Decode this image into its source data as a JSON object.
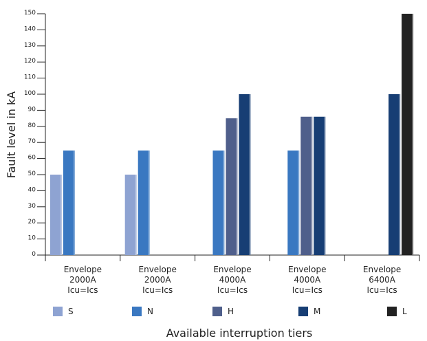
{
  "chart_data": {
    "type": "bar",
    "title": "",
    "xlabel": "Available interruption tiers",
    "ylabel": "Fault level in kA",
    "ylim": [
      0,
      150
    ],
    "yticks": [
      0,
      10,
      20,
      30,
      40,
      50,
      60,
      70,
      80,
      90,
      100,
      110,
      120,
      130,
      140,
      150
    ],
    "grid": false,
    "legend_position": "bottom",
    "categories": [
      [
        "Envelope",
        "2000A",
        "Icu=Ics"
      ],
      [
        "Envelope",
        "2000A",
        "Icu=Ics"
      ],
      [
        "Envelope",
        "4000A",
        "Icu=Ics"
      ],
      [
        "Envelope",
        "4000A",
        "Icu=Ics"
      ],
      [
        "Envelope",
        "6400A",
        "Icu=Ics"
      ]
    ],
    "series": [
      {
        "name": "S",
        "color": "#8ea3d2",
        "values": [
          50,
          50,
          null,
          null,
          null
        ]
      },
      {
        "name": "N",
        "color": "#3a78c1",
        "values": [
          65,
          65,
          65,
          65,
          null
        ]
      },
      {
        "name": "H",
        "color": "#4f5f8b",
        "values": [
          null,
          null,
          85,
          86,
          null
        ]
      },
      {
        "name": "M",
        "color": "#173e74",
        "values": [
          null,
          null,
          100,
          86,
          100
        ]
      },
      {
        "name": "L",
        "color": "#222222",
        "values": [
          null,
          null,
          null,
          null,
          150
        ]
      }
    ]
  }
}
